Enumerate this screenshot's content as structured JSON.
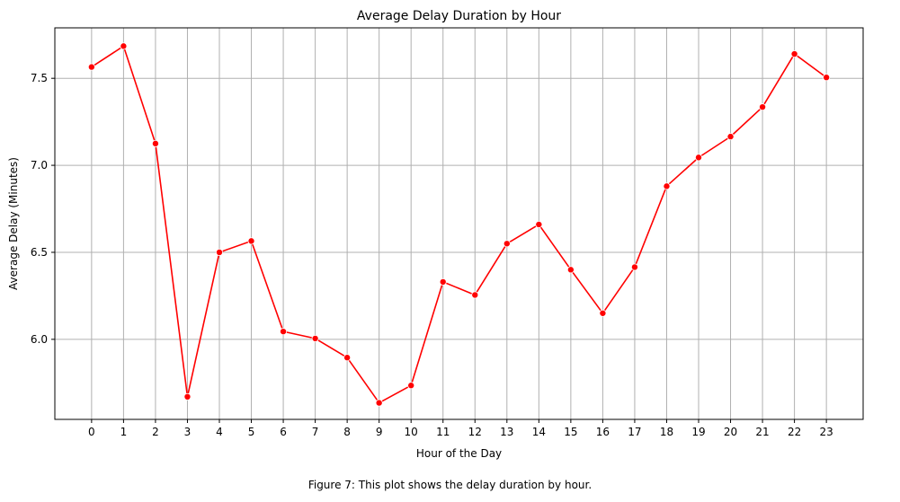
{
  "chart_data": {
    "type": "line",
    "title": "Average Delay Duration by Hour",
    "xlabel": "Hour of the Day",
    "ylabel": "Average Delay (Minutes)",
    "x": [
      0,
      1,
      2,
      3,
      4,
      5,
      6,
      7,
      8,
      9,
      10,
      11,
      12,
      13,
      14,
      15,
      16,
      17,
      18,
      19,
      20,
      21,
      22,
      23
    ],
    "x_tick_labels": [
      "0",
      "1",
      "2",
      "3",
      "4",
      "5",
      "6",
      "7",
      "8",
      "9",
      "10",
      "11",
      "12",
      "13",
      "14",
      "15",
      "16",
      "17",
      "18",
      "19",
      "20",
      "21",
      "22",
      "23"
    ],
    "series": [
      {
        "values": [
          7.565,
          7.685,
          7.125,
          5.67,
          6.5,
          6.565,
          6.045,
          6.005,
          5.895,
          5.635,
          5.735,
          6.33,
          6.255,
          6.55,
          6.66,
          6.4,
          6.15,
          6.415,
          6.88,
          7.045,
          7.165,
          7.335,
          7.64,
          7.505
        ],
        "color": "#ff0000",
        "marker": "circle"
      }
    ],
    "y_ticks": [
      6.0,
      6.5,
      7.0,
      7.5
    ],
    "y_tick_labels": [
      "6.0",
      "6.5",
      "7.0",
      "7.5"
    ],
    "ylim": [
      5.54,
      7.79
    ],
    "xlim": [
      -1.15,
      24.15
    ],
    "grid": true,
    "grid_color": "#b0b0b0",
    "legend": "none"
  },
  "caption": "Figure 7: This plot shows the delay duration by hour."
}
